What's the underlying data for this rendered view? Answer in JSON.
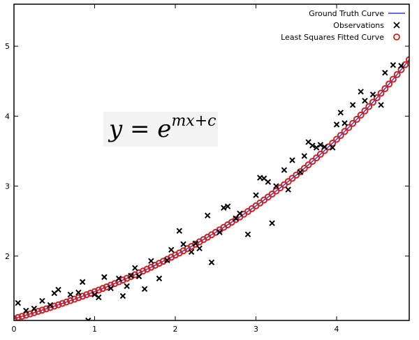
{
  "chart_data": {
    "type": "scatter",
    "title": "",
    "xlabel": "",
    "ylabel": "",
    "xlim": [
      0,
      4.9
    ],
    "ylim": [
      1.08,
      5.6
    ],
    "x_ticks": [
      0,
      1,
      2,
      3,
      4
    ],
    "y_ticks": [
      2,
      3,
      4,
      5
    ],
    "grid": false,
    "legend_position": "top-right",
    "annotation": {
      "lhs": "y = e",
      "exponent": "mx+c"
    },
    "series": [
      {
        "name": "Ground Truth Curve",
        "kind": "line",
        "color": "#3b3bd6",
        "model": {
          "m": 0.3,
          "c": 0.1
        }
      },
      {
        "name": "Observations",
        "kind": "scatter",
        "marker": "x",
        "color": "#000000",
        "points": [
          [
            0.05,
            1.33
          ],
          [
            0.15,
            1.22
          ],
          [
            0.25,
            1.25
          ],
          [
            0.35,
            1.36
          ],
          [
            0.45,
            1.3
          ],
          [
            0.5,
            1.47
          ],
          [
            0.55,
            1.52
          ],
          [
            0.7,
            1.45
          ],
          [
            0.8,
            1.48
          ],
          [
            0.85,
            1.63
          ],
          [
            0.92,
            1.08
          ],
          [
            1.0,
            1.45
          ],
          [
            1.05,
            1.41
          ],
          [
            1.12,
            1.7
          ],
          [
            1.2,
            1.54
          ],
          [
            1.3,
            1.68
          ],
          [
            1.35,
            1.43
          ],
          [
            1.4,
            1.57
          ],
          [
            1.45,
            1.72
          ],
          [
            1.5,
            1.83
          ],
          [
            1.55,
            1.71
          ],
          [
            1.62,
            1.53
          ],
          [
            1.7,
            1.93
          ],
          [
            1.8,
            1.68
          ],
          [
            1.9,
            1.94
          ],
          [
            1.95,
            2.09
          ],
          [
            2.05,
            2.36
          ],
          [
            2.1,
            2.17
          ],
          [
            2.2,
            2.06
          ],
          [
            2.25,
            2.18
          ],
          [
            2.3,
            2.11
          ],
          [
            2.4,
            2.58
          ],
          [
            2.45,
            1.91
          ],
          [
            2.55,
            2.34
          ],
          [
            2.6,
            2.69
          ],
          [
            2.65,
            2.71
          ],
          [
            2.75,
            2.54
          ],
          [
            2.8,
            2.61
          ],
          [
            2.9,
            2.31
          ],
          [
            3.0,
            2.87
          ],
          [
            3.05,
            3.12
          ],
          [
            3.1,
            3.11
          ],
          [
            3.15,
            3.06
          ],
          [
            3.2,
            2.47
          ],
          [
            3.25,
            3.0
          ],
          [
            3.35,
            3.23
          ],
          [
            3.4,
            2.95
          ],
          [
            3.45,
            3.37
          ],
          [
            3.55,
            3.2
          ],
          [
            3.6,
            3.43
          ],
          [
            3.65,
            3.63
          ],
          [
            3.7,
            3.58
          ],
          [
            3.75,
            3.55
          ],
          [
            3.8,
            3.59
          ],
          [
            3.85,
            3.56
          ],
          [
            3.95,
            3.55
          ],
          [
            4.0,
            3.88
          ],
          [
            4.05,
            4.05
          ],
          [
            4.1,
            3.9
          ],
          [
            4.2,
            4.16
          ],
          [
            4.3,
            4.35
          ],
          [
            4.35,
            4.22
          ],
          [
            4.45,
            4.31
          ],
          [
            4.55,
            4.16
          ],
          [
            4.6,
            4.62
          ],
          [
            4.7,
            4.73
          ],
          [
            4.8,
            4.72
          ]
        ]
      },
      {
        "name": "Least Squares Fitted Curve",
        "kind": "scatter",
        "marker": "circle-open",
        "color": "#cc2222",
        "model": {
          "m": 0.3,
          "c": 0.1
        },
        "x_start": 0,
        "x_step": 0.05,
        "x_end": 4.9
      }
    ]
  }
}
